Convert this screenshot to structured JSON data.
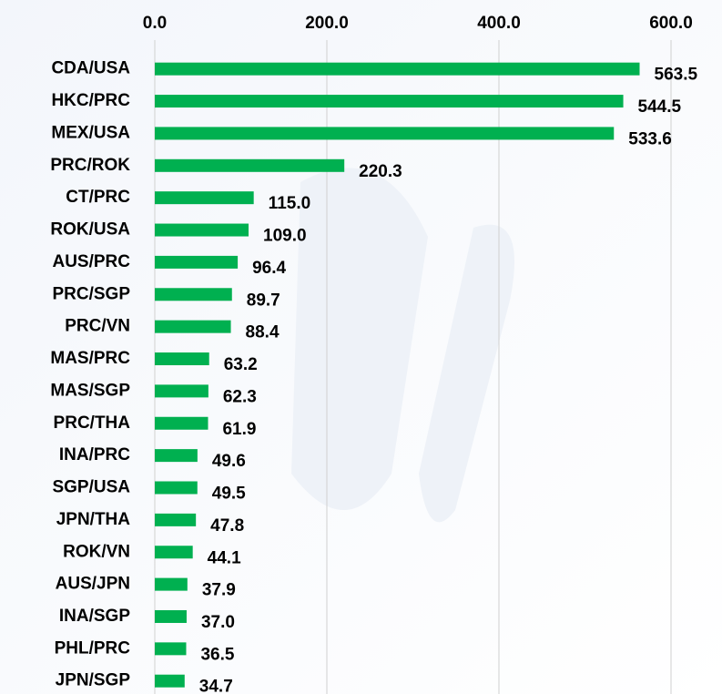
{
  "chart_data": {
    "type": "bar",
    "orientation": "horizontal",
    "categories": [
      "CDA/USA",
      "HKC/PRC",
      "MEX/USA",
      "PRC/ROK",
      "CT/PRC",
      "ROK/USA",
      "AUS/PRC",
      "PRC/SGP",
      "PRC/VN",
      "MAS/PRC",
      "MAS/SGP",
      "PRC/THA",
      "INA/PRC",
      "SGP/USA",
      "JPN/THA",
      "ROK/VN",
      "AUS/JPN",
      "INA/SGP",
      "PHL/PRC",
      "JPN/SGP"
    ],
    "values": [
      563.5,
      544.5,
      533.6,
      220.3,
      115.0,
      109.0,
      96.4,
      89.7,
      88.4,
      63.2,
      62.3,
      61.9,
      49.6,
      49.5,
      47.8,
      44.1,
      37.9,
      37.0,
      36.5,
      34.7
    ],
    "value_labels": [
      "563.5",
      "544.5",
      "533.6",
      "220.3",
      "115.0",
      "109.0",
      "96.4",
      "89.7",
      "88.4",
      "63.2",
      "62.3",
      "61.9",
      "49.6",
      "49.5",
      "47.8",
      "44.1",
      "37.9",
      "37.0",
      "36.5",
      "34.7"
    ],
    "color": "#00b050",
    "xlim": [
      0,
      600
    ],
    "xticks": [
      {
        "value": 0,
        "label": "0.0"
      },
      {
        "value": 200,
        "label": "200.0"
      },
      {
        "value": 400,
        "label": "400.0"
      },
      {
        "value": 600,
        "label": "600.0"
      }
    ],
    "grid": true
  }
}
